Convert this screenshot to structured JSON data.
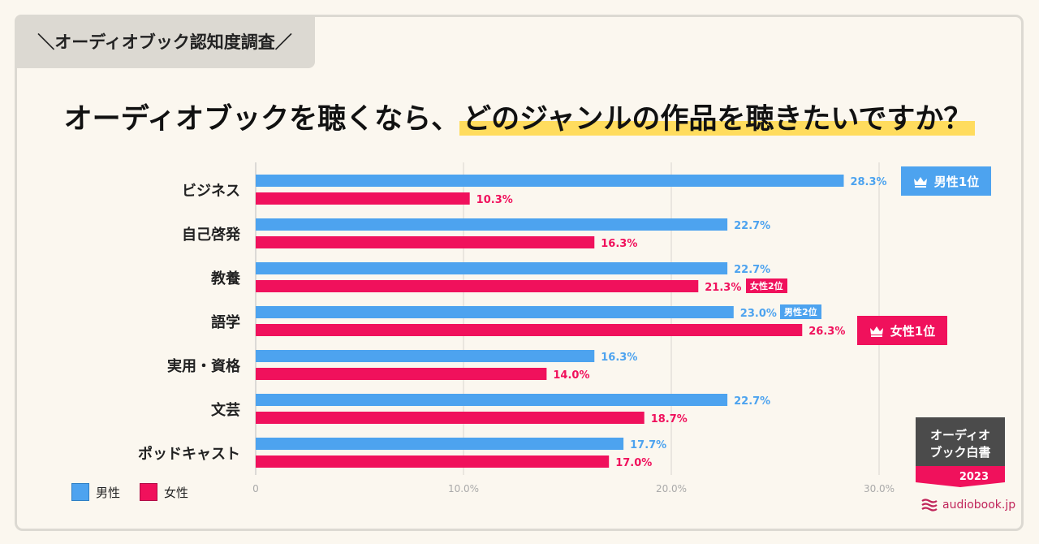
{
  "header_tag": "＼オーディオブック認知度調査／",
  "title": {
    "part1": "オーディオブックを聴くなら、",
    "part2_highlight": "どのジャンルの作品を聴きたいですか？"
  },
  "colors": {
    "male": "#4da3ef",
    "female": "#f0115c",
    "highlight": "#ffdc5e",
    "gray": "#555555"
  },
  "legend": {
    "male": "男性",
    "female": "女性"
  },
  "badges": {
    "male_first": "男性1位",
    "female_first": "女性1位",
    "male_second": "男性2位",
    "female_second": "女性2位"
  },
  "logo": {
    "line1": "オーディオ",
    "line2": "ブック白書",
    "year": "2023",
    "site": "audiobook.jp"
  },
  "chart_data": {
    "type": "bar",
    "orientation": "horizontal",
    "title": "オーディオブックを聴くなら、どのジャンルの作品を聴きたいですか？",
    "categories": [
      "ビジネス",
      "自己啓発",
      "教養",
      "語学",
      "実用・資格",
      "文芸",
      "ポッドキャスト"
    ],
    "series": [
      {
        "name": "男性",
        "values": [
          28.3,
          22.7,
          22.7,
          23.0,
          16.3,
          22.7,
          17.7
        ]
      },
      {
        "name": "女性",
        "values": [
          10.3,
          16.3,
          21.3,
          26.3,
          14.0,
          18.7,
          17.0
        ]
      }
    ],
    "value_labels": {
      "男性": [
        "28.3%",
        "22.7%",
        "22.7%",
        "23.0%",
        "16.3%",
        "22.7%",
        "17.7%"
      ],
      "女性": [
        "10.3%",
        "16.3%",
        "21.3%",
        "26.3%",
        "14.0%",
        "18.7%",
        "17.0%"
      ]
    },
    "xlim": [
      0,
      30
    ],
    "xticks": [
      0,
      10,
      20,
      30
    ],
    "xtick_labels": [
      "0",
      "10.0%",
      "20.0%",
      "30.0%"
    ],
    "grid": true,
    "legend_position": "bottom-left"
  }
}
